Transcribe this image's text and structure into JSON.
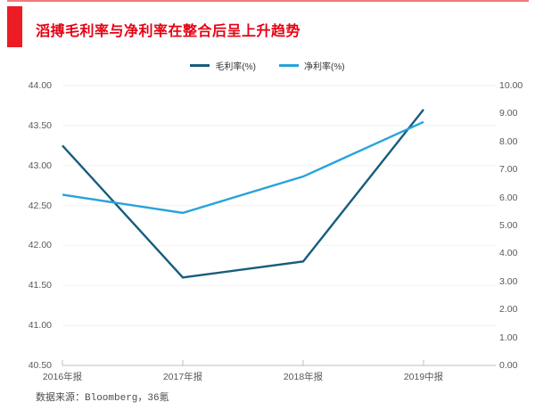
{
  "page": {
    "title": "滔搏毛利率与净利率在整合后呈上升趋势",
    "source_note": "数据来源：Bloomberg，36氪"
  },
  "colors": {
    "title_red": "#E60012",
    "accent_block_red": "#EC1C24",
    "top_rule_red": "#EF7B7B",
    "gross_margin_line": "#175D7D",
    "net_margin_line": "#27A3DC",
    "axis_line": "#BFBFBF",
    "gridline": "#F2F2F2",
    "axis_text": "#595959"
  },
  "chart_data": {
    "type": "line",
    "title": "滔搏毛利率与净利率在整合后呈上升趋势",
    "categories": [
      "2016年报",
      "2017年报",
      "2018年报",
      "2019中报"
    ],
    "series": [
      {
        "name": "毛利率(%)",
        "axis": "left",
        "color": "#175D7D",
        "values": [
          43.25,
          41.6,
          41.8,
          43.7
        ]
      },
      {
        "name": "净利率(%)",
        "axis": "right",
        "color": "#27A3DC",
        "values": [
          6.1,
          5.45,
          6.75,
          8.7
        ]
      }
    ],
    "left_axis": {
      "min": 40.5,
      "max": 44.0,
      "step": 0.5,
      "ticks": [
        "44.00",
        "43.50",
        "43.00",
        "42.50",
        "42.00",
        "41.50",
        "41.00",
        "40.50"
      ]
    },
    "right_axis": {
      "min": 0.0,
      "max": 10.0,
      "step": 1.0,
      "ticks": [
        "10.00",
        "9.00",
        "8.00",
        "7.00",
        "6.00",
        "5.00",
        "4.00",
        "3.00",
        "2.00",
        "1.00",
        "0.00"
      ]
    },
    "legend_position": "top",
    "grid": true
  }
}
